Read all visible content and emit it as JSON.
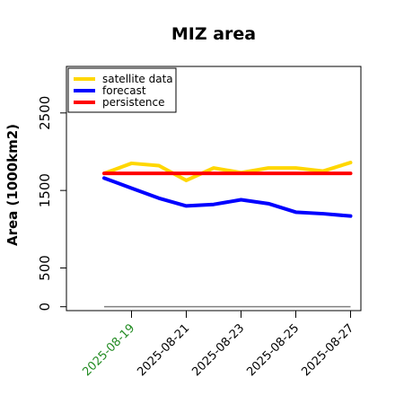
{
  "chart_data": {
    "type": "line",
    "title": "MIZ area",
    "xlabel": "",
    "ylabel": "Area (1000km2)",
    "x": [
      "2025-08-18",
      "2025-08-19",
      "2025-08-20",
      "2025-08-21",
      "2025-08-22",
      "2025-08-23",
      "2025-08-24",
      "2025-08-25",
      "2025-08-26",
      "2025-08-27"
    ],
    "x_tick_labels": [
      "2025-08-19",
      "2025-08-21",
      "2025-08-23",
      "2025-08-25",
      "2025-08-27"
    ],
    "x_tick_colors": [
      "#228b22",
      "#000000",
      "#000000",
      "#000000",
      "#000000"
    ],
    "y_ticks": [
      0,
      500,
      1500,
      2500
    ],
    "ylim": [
      -50,
      3100
    ],
    "grid": false,
    "legend_position": "top-left",
    "series": [
      {
        "name": "satellite data",
        "color": "#ffd700",
        "values": [
          1720,
          1850,
          1820,
          1630,
          1790,
          1730,
          1790,
          1790,
          1750,
          1860
        ]
      },
      {
        "name": "forecast",
        "color": "#0000ff",
        "values": [
          1660,
          1530,
          1400,
          1300,
          1320,
          1380,
          1330,
          1220,
          1200,
          1170
        ]
      },
      {
        "name": "persistence",
        "color": "#ff0000",
        "values": [
          1720,
          1720,
          1720,
          1720,
          1720,
          1720,
          1720,
          1720,
          1720,
          1720
        ]
      }
    ],
    "reference_line": {
      "value": 0,
      "color": "#808080"
    }
  }
}
